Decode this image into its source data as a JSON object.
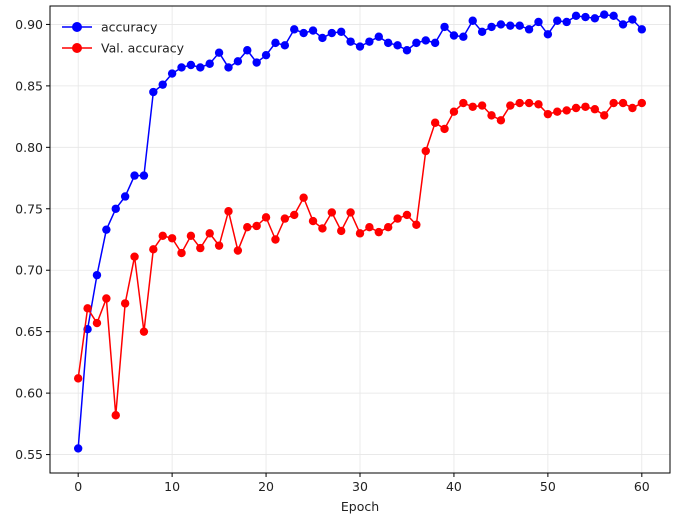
{
  "chart_data": {
    "type": "line",
    "title": "",
    "xlabel": "Epoch",
    "ylabel": "",
    "xlim": [
      -3,
      63
    ],
    "ylim": [
      0.535,
      0.915
    ],
    "xticks": [
      0,
      10,
      20,
      30,
      40,
      50,
      60
    ],
    "xtick_labels": [
      "0",
      "10",
      "20",
      "30",
      "40",
      "50",
      "60"
    ],
    "yticks": [
      0.55,
      0.6,
      0.65,
      0.7,
      0.75,
      0.8,
      0.85,
      0.9
    ],
    "ytick_labels": [
      "0.55",
      "0.60",
      "0.65",
      "0.70",
      "0.75",
      "0.80",
      "0.85",
      "0.90"
    ],
    "grid": true,
    "legend": "top-left",
    "x": [
      0,
      1,
      2,
      3,
      4,
      5,
      6,
      7,
      8,
      9,
      10,
      11,
      12,
      13,
      14,
      15,
      16,
      17,
      18,
      19,
      20,
      21,
      22,
      23,
      24,
      25,
      26,
      27,
      28,
      29,
      30,
      31,
      32,
      33,
      34,
      35,
      36,
      37,
      38,
      39,
      40,
      41,
      42,
      43,
      44,
      45,
      46,
      47,
      48,
      49,
      50,
      51,
      52,
      53,
      54,
      55,
      56,
      57,
      58,
      59,
      60
    ],
    "series": [
      {
        "name": "accuracy",
        "color": "#0000ff",
        "values": [
          0.555,
          0.652,
          0.696,
          0.733,
          0.75,
          0.76,
          0.777,
          0.777,
          0.845,
          0.851,
          0.86,
          0.865,
          0.867,
          0.865,
          0.868,
          0.877,
          0.865,
          0.87,
          0.879,
          0.869,
          0.875,
          0.885,
          0.883,
          0.896,
          0.893,
          0.895,
          0.889,
          0.893,
          0.894,
          0.886,
          0.882,
          0.886,
          0.89,
          0.885,
          0.883,
          0.879,
          0.885,
          0.887,
          0.885,
          0.898,
          0.891,
          0.89,
          0.903,
          0.894,
          0.898,
          0.9,
          0.899,
          0.899,
          0.896,
          0.902,
          0.892,
          0.903,
          0.902,
          0.907,
          0.906,
          0.905,
          0.908,
          0.907,
          0.9,
          0.904,
          0.896
        ]
      },
      {
        "name": "Val. accuracy",
        "color": "#ff0000",
        "values": [
          0.612,
          0.669,
          0.657,
          0.677,
          0.582,
          0.673,
          0.711,
          0.65,
          0.717,
          0.728,
          0.726,
          0.714,
          0.728,
          0.718,
          0.73,
          0.72,
          0.748,
          0.716,
          0.735,
          0.736,
          0.743,
          0.725,
          0.742,
          0.745,
          0.759,
          0.74,
          0.734,
          0.747,
          0.732,
          0.747,
          0.73,
          0.735,
          0.731,
          0.735,
          0.742,
          0.745,
          0.737,
          0.797,
          0.82,
          0.815,
          0.829,
          0.836,
          0.833,
          0.834,
          0.826,
          0.822,
          0.834,
          0.836,
          0.836,
          0.835,
          0.827,
          0.829,
          0.83,
          0.832,
          0.833,
          0.831,
          0.826,
          0.836,
          0.836,
          0.832,
          0.836
        ]
      }
    ]
  }
}
